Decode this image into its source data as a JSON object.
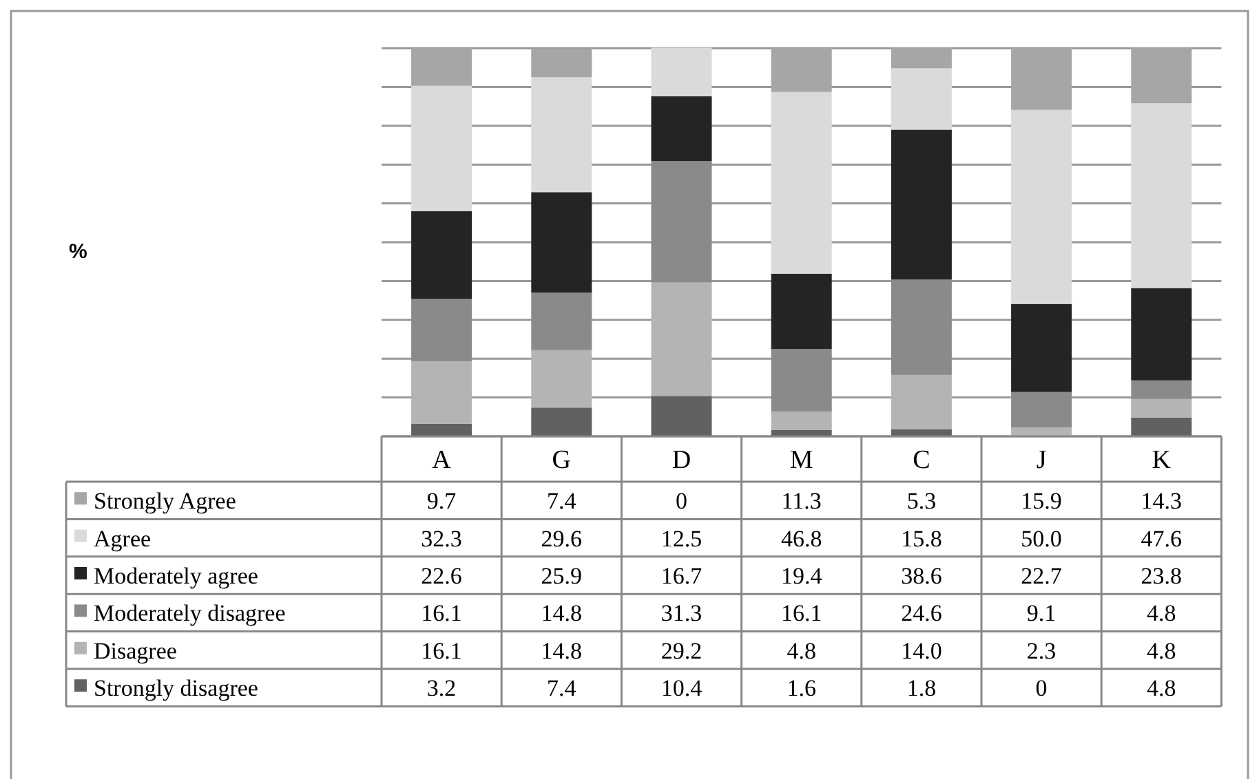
{
  "chart_data": {
    "type": "bar",
    "stacked": true,
    "annotations": [
      "%"
    ],
    "categories": [
      "A",
      "G",
      "D",
      "M",
      "C",
      "J",
      "K"
    ],
    "series": [
      {
        "name": "Strongly disagree",
        "color": "#616161",
        "values": [
          3.2,
          7.4,
          10.4,
          1.6,
          1.8,
          0,
          4.8
        ],
        "value_labels": [
          "3.2",
          "7.4",
          "10.4",
          "1.6",
          "1.8",
          "0",
          "4.8"
        ]
      },
      {
        "name": "Disagree",
        "color": "#b4b4b4",
        "values": [
          16.1,
          14.8,
          29.2,
          4.8,
          14.0,
          2.3,
          4.8
        ],
        "value_labels": [
          "16.1",
          "14.8",
          "29.2",
          "4.8",
          "14.0",
          "2.3",
          "4.8"
        ]
      },
      {
        "name": "Moderately disagree",
        "color": "#8a8a8a",
        "values": [
          16.1,
          14.8,
          31.3,
          16.1,
          24.6,
          9.1,
          4.8
        ],
        "value_labels": [
          "16.1",
          "14.8",
          "31.3",
          "16.1",
          "24.6",
          "9.1",
          "4.8"
        ]
      },
      {
        "name": "Moderately agree",
        "color": "#242424",
        "values": [
          22.6,
          25.9,
          16.7,
          19.4,
          38.6,
          22.7,
          23.8
        ],
        "value_labels": [
          "22.6",
          "25.9",
          "16.7",
          "19.4",
          "38.6",
          "22.7",
          "23.8"
        ]
      },
      {
        "name": "Agree",
        "color": "#dadada",
        "values": [
          32.3,
          29.6,
          12.5,
          46.8,
          15.8,
          50.0,
          47.6
        ],
        "value_labels": [
          "32.3",
          "29.6",
          "12.5",
          "46.8",
          "15.8",
          "50.0",
          "47.6"
        ]
      },
      {
        "name": "Strongly Agree",
        "color": "#a6a6a6",
        "values": [
          9.7,
          7.4,
          0,
          11.3,
          5.3,
          15.9,
          14.3
        ],
        "value_labels": [
          "9.7",
          "7.4",
          "0",
          "11.3",
          "5.3",
          "15.9",
          "14.3"
        ]
      }
    ],
    "ylim": [
      0,
      100
    ],
    "yticks": [
      {
        "value": 0,
        "label": null
      },
      {
        "value": 10,
        "label": null
      },
      {
        "value": 20,
        "label": null
      },
      {
        "value": 30,
        "label": null
      },
      {
        "value": 40,
        "label": null
      },
      {
        "value": 50,
        "label": null
      },
      {
        "value": 60,
        "label": null
      },
      {
        "value": 70,
        "label": null
      },
      {
        "value": 80,
        "label": null
      },
      {
        "value": 90,
        "label": null
      },
      {
        "value": 100,
        "label": null
      }
    ],
    "tick_labels": "x",
    "grid": "y",
    "legend": "bottom left"
  }
}
